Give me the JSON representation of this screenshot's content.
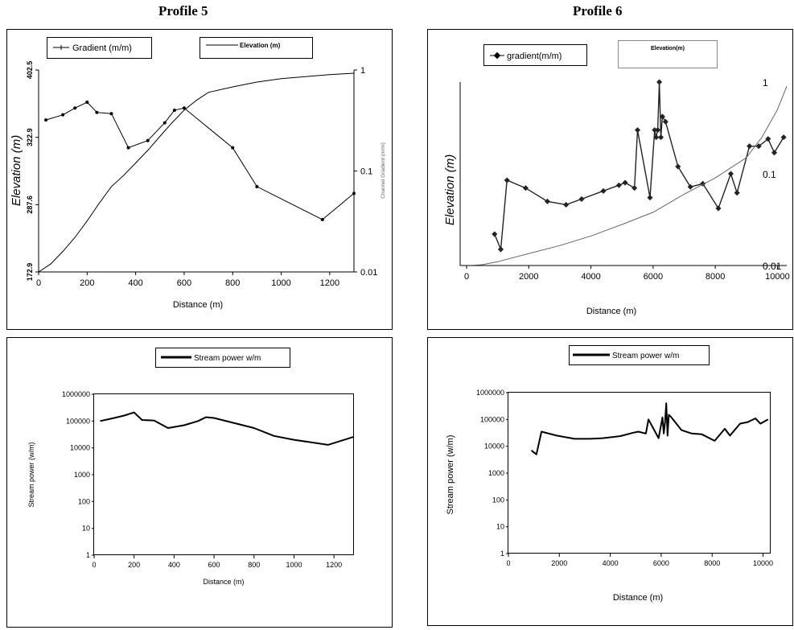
{
  "titles": {
    "left": "Profile 5",
    "right": "Profile 6"
  },
  "chart_data": [
    {
      "id": "p5-profile",
      "type": "line",
      "xlabel": "Distance (m)",
      "ylabel_left": "Elevation (m)",
      "ylabel_right": "Channel Gradient (m/m)",
      "xlim": [
        0,
        1300
      ],
      "x_ticks": [
        "0",
        "200",
        "400",
        "600",
        "800",
        "1000",
        "1200"
      ],
      "y_left_lim": [
        172.9,
        402.5
      ],
      "y_left_ticks": [
        "172.9",
        "287.6",
        "322.9",
        "402.5"
      ],
      "y_right_lim": [
        0.01,
        1
      ],
      "y_right_scale": "log",
      "y_right_ticks": [
        "0.01",
        "0.1",
        "1"
      ],
      "legend": [
        "Gradient (m/m)",
        "Elevation (m)"
      ],
      "series": [
        {
          "name": "Gradient (m/m)",
          "axis": "right",
          "markers": true,
          "x": [
            30,
            100,
            150,
            200,
            240,
            300,
            370,
            450,
            520,
            560,
            600,
            800,
            900,
            1170,
            1300
          ],
          "y": [
            0.32,
            0.36,
            0.42,
            0.48,
            0.38,
            0.37,
            0.17,
            0.2,
            0.3,
            0.4,
            0.42,
            0.17,
            0.07,
            0.033,
            0.06
          ]
        },
        {
          "name": "Elevation (m)",
          "axis": "right",
          "markers": false,
          "x": [
            0,
            50,
            100,
            150,
            200,
            250,
            300,
            350,
            400,
            450,
            500,
            550,
            600,
            650,
            700,
            800,
            900,
            1000,
            1100,
            1200,
            1300
          ],
          "y": [
            0.01,
            0.012,
            0.016,
            0.022,
            0.032,
            0.048,
            0.07,
            0.09,
            0.12,
            0.16,
            0.22,
            0.3,
            0.4,
            0.5,
            0.6,
            0.68,
            0.76,
            0.82,
            0.86,
            0.9,
            0.93
          ]
        }
      ]
    },
    {
      "id": "p6-profile",
      "type": "line",
      "xlabel": "Distance (m)",
      "ylabel_left": "Elevation (m)",
      "xlim": [
        0,
        10300
      ],
      "x_ticks": [
        "0",
        "2000",
        "4000",
        "6000",
        "8000",
        "10000"
      ],
      "y_right_lim": [
        0.01,
        1
      ],
      "y_right_scale": "log",
      "y_right_ticks": [
        "0.01",
        "0.1",
        "1"
      ],
      "legend": [
        "gradient(m/m)",
        "Elevation(m)"
      ],
      "series": [
        {
          "name": "gradient(m/m)",
          "axis": "right",
          "markers": true,
          "x": [
            900,
            1100,
            1300,
            1900,
            2600,
            3200,
            3700,
            4400,
            4900,
            5100,
            5400,
            5500,
            5900,
            6050,
            6100,
            6150,
            6200,
            6250,
            6300,
            6400,
            6800,
            7200,
            7600,
            8100,
            8500,
            8700,
            9100,
            9400,
            9700,
            9900,
            10200
          ],
          "y": [
            0.022,
            0.015,
            0.085,
            0.07,
            0.05,
            0.046,
            0.053,
            0.065,
            0.075,
            0.08,
            0.07,
            0.3,
            0.055,
            0.3,
            0.25,
            0.3,
            1.0,
            0.25,
            0.42,
            0.37,
            0.12,
            0.072,
            0.078,
            0.042,
            0.1,
            0.062,
            0.2,
            0.2,
            0.24,
            0.17,
            0.25
          ]
        },
        {
          "name": "Elevation(m)",
          "axis": "right",
          "markers": false,
          "x": [
            200,
            500,
            1000,
            2000,
            3000,
            4000,
            5000,
            6000,
            7000,
            8000,
            9000,
            9500,
            10000,
            10300
          ],
          "y": [
            0.01,
            0.0102,
            0.011,
            0.0135,
            0.0165,
            0.021,
            0.028,
            0.038,
            0.06,
            0.09,
            0.15,
            0.25,
            0.5,
            0.9
          ]
        }
      ]
    },
    {
      "id": "p5-stream",
      "type": "line",
      "xlabel": "Distance (m)",
      "ylabel": "Stream power (w/m)",
      "xlim": [
        0,
        1300
      ],
      "x_ticks": [
        "0",
        "200",
        "400",
        "600",
        "800",
        "1000",
        "1200"
      ],
      "ylim": [
        1,
        1000000
      ],
      "y_scale": "log",
      "y_ticks": [
        "1",
        "10",
        "100",
        "1000",
        "10000",
        "100000",
        "1000000"
      ],
      "legend": [
        "Stream power w/m"
      ],
      "series": [
        {
          "name": "Stream power w/m",
          "x": [
            30,
            100,
            150,
            200,
            240,
            300,
            370,
            450,
            520,
            560,
            600,
            800,
            900,
            1000,
            1170,
            1300
          ],
          "y": [
            100000,
            130000,
            160000,
            210000,
            110000,
            105000,
            55000,
            70000,
            100000,
            140000,
            130000,
            55000,
            28000,
            20000,
            13000,
            26000
          ]
        }
      ]
    },
    {
      "id": "p6-stream",
      "type": "line",
      "xlabel": "Distance (m)",
      "ylabel": "Stream power (w/m)",
      "xlim": [
        0,
        10300
      ],
      "x_ticks": [
        "0",
        "2000",
        "4000",
        "6000",
        "8000",
        "10000"
      ],
      "ylim": [
        1,
        1000000
      ],
      "y_scale": "log",
      "y_ticks": [
        "1",
        "10",
        "100",
        "1000",
        "10000",
        "100000",
        "1000000"
      ],
      "legend": [
        "Stream power w/m"
      ],
      "series": [
        {
          "name": "Stream power w/m",
          "x": [
            900,
            1100,
            1300,
            1900,
            2600,
            3200,
            3700,
            4400,
            4900,
            5100,
            5400,
            5500,
            5900,
            6050,
            6100,
            6150,
            6200,
            6250,
            6300,
            6400,
            6800,
            7200,
            7600,
            8100,
            8500,
            8700,
            9100,
            9400,
            9700,
            9900,
            10200
          ],
          "y": [
            7000,
            5000,
            35000,
            25000,
            19000,
            19000,
            20000,
            24000,
            32000,
            35000,
            30000,
            100000,
            20000,
            120000,
            30000,
            80000,
            400000,
            25000,
            150000,
            120000,
            40000,
            30000,
            28000,
            16000,
            45000,
            25000,
            70000,
            80000,
            110000,
            70000,
            100000
          ]
        }
      ]
    }
  ]
}
